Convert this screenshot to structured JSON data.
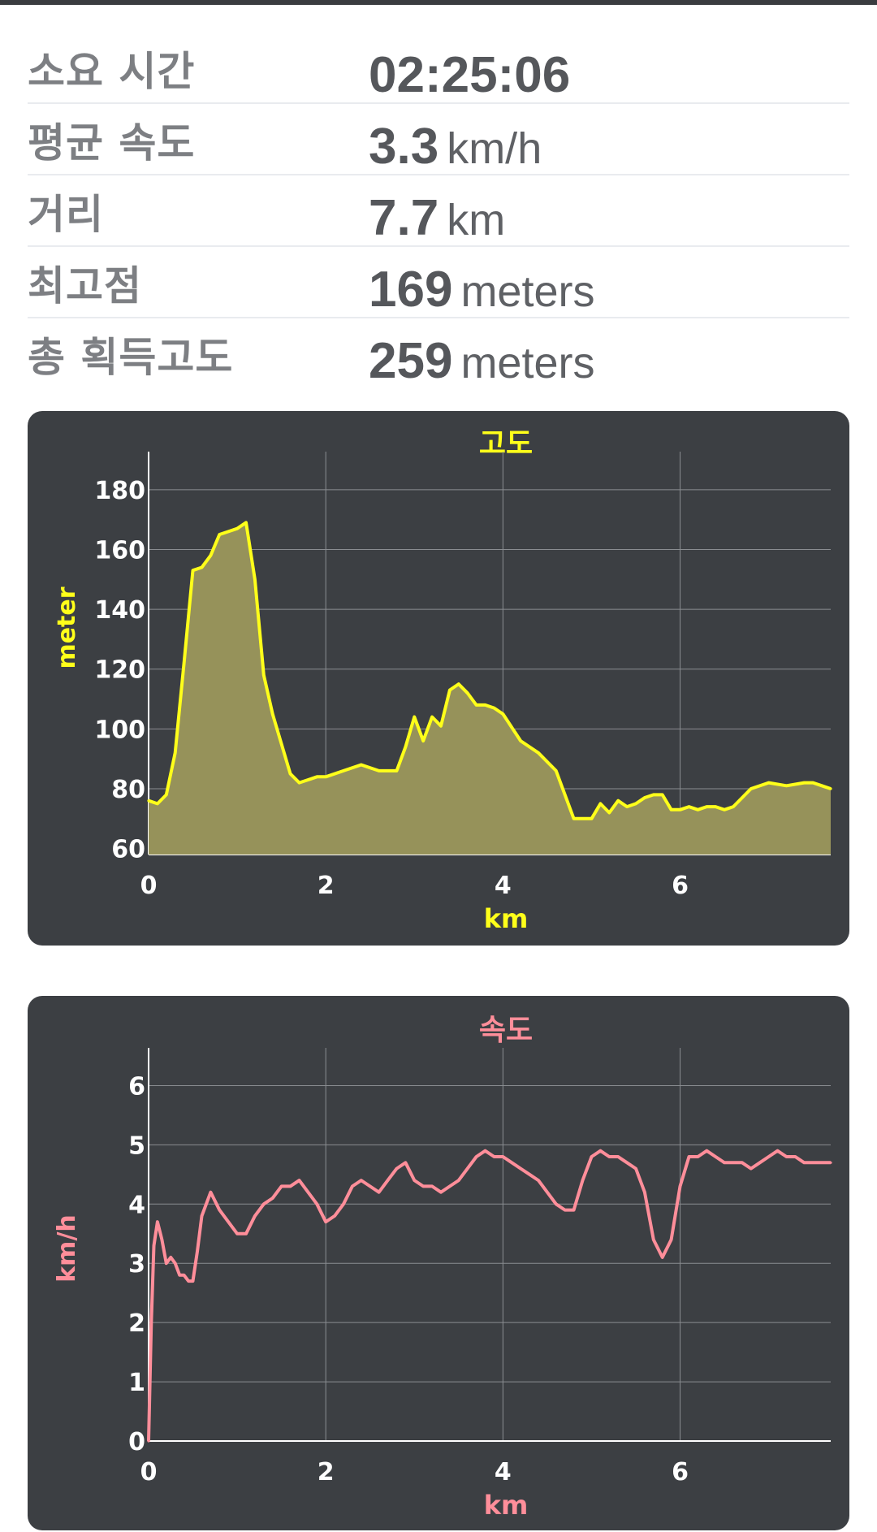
{
  "stats": [
    {
      "label": "소요 시간",
      "value": "02:25:06",
      "unit": ""
    },
    {
      "label": "평균 속도",
      "value": "3.3",
      "unit": "km/h"
    },
    {
      "label": "거리",
      "value": "7.7",
      "unit": "km"
    },
    {
      "label": "최고점",
      "value": "169",
      "unit": "meters"
    },
    {
      "label": "총 획득고도",
      "value": "259",
      "unit": "meters"
    }
  ],
  "colors": {
    "elevation_line": "#ffff1a",
    "elevation_fill": "#96925a",
    "speed_line": "#ff8e9a",
    "card_bg": "#3c3f43",
    "grid": "#8a8d91"
  },
  "chart_data": [
    {
      "type": "area",
      "title": "고도",
      "xlabel": "km",
      "ylabel": "meter",
      "xlim": [
        0,
        7.7
      ],
      "ylim": [
        58,
        190
      ],
      "xticks": [
        0,
        2,
        4,
        6
      ],
      "yticks": [
        60,
        80,
        100,
        120,
        140,
        160,
        180
      ],
      "grid": true,
      "x": [
        0,
        0.1,
        0.2,
        0.3,
        0.4,
        0.5,
        0.6,
        0.7,
        0.8,
        0.9,
        1.0,
        1.1,
        1.2,
        1.3,
        1.4,
        1.5,
        1.6,
        1.7,
        1.8,
        1.9,
        2.0,
        2.2,
        2.4,
        2.6,
        2.8,
        2.9,
        3.0,
        3.1,
        3.2,
        3.3,
        3.4,
        3.5,
        3.6,
        3.7,
        3.8,
        3.9,
        4.0,
        4.2,
        4.4,
        4.6,
        4.8,
        5.0,
        5.1,
        5.2,
        5.3,
        5.4,
        5.5,
        5.6,
        5.7,
        5.8,
        5.9,
        6.0,
        6.1,
        6.2,
        6.3,
        6.4,
        6.5,
        6.6,
        6.8,
        7.0,
        7.2,
        7.4,
        7.5,
        7.6,
        7.7
      ],
      "y": [
        76,
        75,
        78,
        92,
        122,
        153,
        154,
        158,
        165,
        166,
        167,
        169,
        150,
        118,
        105,
        95,
        85,
        82,
        83,
        84,
        84,
        86,
        88,
        86,
        86,
        94,
        104,
        96,
        104,
        101,
        113,
        115,
        112,
        108,
        108,
        107,
        105,
        96,
        92,
        86,
        70,
        70,
        75,
        72,
        76,
        74,
        75,
        77,
        78,
        78,
        73,
        73,
        74,
        73,
        74,
        74,
        73,
        74,
        80,
        82,
        81,
        82,
        82,
        81,
        80
      ]
    },
    {
      "type": "line",
      "title": "속도",
      "xlabel": "km",
      "ylabel": "km/h",
      "xlim": [
        0,
        7.7
      ],
      "ylim": [
        0,
        6.5
      ],
      "xticks": [
        0,
        2,
        4,
        6
      ],
      "yticks": [
        0,
        1,
        2,
        3,
        4,
        5,
        6
      ],
      "grid": true,
      "x": [
        0,
        0.03,
        0.06,
        0.1,
        0.15,
        0.2,
        0.25,
        0.3,
        0.35,
        0.4,
        0.45,
        0.5,
        0.55,
        0.6,
        0.7,
        0.8,
        0.9,
        1.0,
        1.1,
        1.2,
        1.3,
        1.4,
        1.5,
        1.6,
        1.7,
        1.8,
        1.9,
        2.0,
        2.1,
        2.2,
        2.3,
        2.4,
        2.5,
        2.6,
        2.7,
        2.8,
        2.9,
        3.0,
        3.1,
        3.2,
        3.3,
        3.4,
        3.5,
        3.6,
        3.7,
        3.8,
        3.9,
        4.0,
        4.1,
        4.2,
        4.3,
        4.4,
        4.5,
        4.6,
        4.7,
        4.8,
        4.9,
        5.0,
        5.1,
        5.2,
        5.3,
        5.4,
        5.5,
        5.6,
        5.7,
        5.8,
        5.9,
        6.0,
        6.1,
        6.2,
        6.3,
        6.4,
        6.5,
        6.6,
        6.7,
        6.8,
        6.9,
        7.0,
        7.1,
        7.2,
        7.3,
        7.4,
        7.5,
        7.6,
        7.7
      ],
      "y": [
        0,
        2.0,
        3.3,
        3.7,
        3.4,
        3.0,
        3.1,
        3.0,
        2.8,
        2.8,
        2.7,
        2.7,
        3.2,
        3.8,
        4.2,
        3.9,
        3.7,
        3.5,
        3.5,
        3.8,
        4.0,
        4.1,
        4.3,
        4.3,
        4.4,
        4.2,
        4.0,
        3.7,
        3.8,
        4.0,
        4.3,
        4.4,
        4.3,
        4.2,
        4.4,
        4.6,
        4.7,
        4.4,
        4.3,
        4.3,
        4.2,
        4.3,
        4.4,
        4.6,
        4.8,
        4.9,
        4.8,
        4.8,
        4.7,
        4.6,
        4.5,
        4.4,
        4.2,
        4.0,
        3.9,
        3.9,
        4.4,
        4.8,
        4.9,
        4.8,
        4.8,
        4.7,
        4.6,
        4.2,
        3.4,
        3.1,
        3.4,
        4.3,
        4.8,
        4.8,
        4.9,
        4.8,
        4.7,
        4.7,
        4.7,
        4.6,
        4.7,
        4.8,
        4.9,
        4.8,
        4.8,
        4.7,
        4.7,
        4.7,
        4.7
      ]
    }
  ]
}
